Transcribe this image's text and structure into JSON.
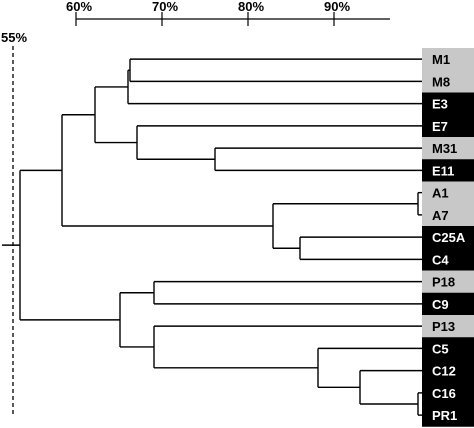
{
  "figure": {
    "scale": {
      "ticks": [
        "60%",
        "70%",
        "80%",
        "90%"
      ],
      "cutoff_label": "55%"
    },
    "colors": {
      "line": "#000000",
      "dark_box": "#000000",
      "light_box": "#c8c8c8",
      "dark_text": "#ffffff",
      "light_text": "#000000"
    },
    "leaves": [
      {
        "id": "M1",
        "shade": "light"
      },
      {
        "id": "M8",
        "shade": "light"
      },
      {
        "id": "E3",
        "shade": "dark"
      },
      {
        "id": "E7",
        "shade": "dark"
      },
      {
        "id": "M31",
        "shade": "light"
      },
      {
        "id": "E11",
        "shade": "dark"
      },
      {
        "id": "A1",
        "shade": "light"
      },
      {
        "id": "A7",
        "shade": "light"
      },
      {
        "id": "C25A",
        "shade": "dark"
      },
      {
        "id": "C4",
        "shade": "dark"
      },
      {
        "id": "P18",
        "shade": "light"
      },
      {
        "id": "C9",
        "shade": "dark"
      },
      {
        "id": "P13",
        "shade": "light"
      },
      {
        "id": "C5",
        "shade": "dark"
      },
      {
        "id": "C12",
        "shade": "dark"
      },
      {
        "id": "C16",
        "shade": "dark"
      },
      {
        "id": "PR1",
        "shade": "dark"
      }
    ]
  }
}
